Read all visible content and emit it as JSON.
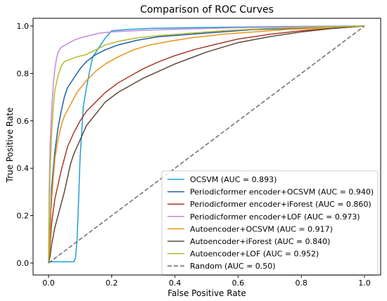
{
  "chart_data": {
    "type": "line",
    "title": "Comparison of ROC Curves",
    "xlabel": "False Positive Rate",
    "ylabel": "True Positive Rate",
    "xlim": [
      0.0,
      1.0
    ],
    "ylim": [
      0.0,
      1.0
    ],
    "xticks": [
      "0.0",
      "0.2",
      "0.4",
      "0.6",
      "0.8",
      "1.0"
    ],
    "yticks": [
      "0.0",
      "0.2",
      "0.4",
      "0.6",
      "0.8",
      "1.0"
    ],
    "grid": false,
    "legend_position": "lower-right",
    "series": [
      {
        "name": "OCSVM (AUC = 0.893)",
        "color": "#1f9fd6",
        "style": "solid",
        "points": [
          [
            0.0,
            0.0
          ],
          [
            0.0,
            0.005
          ],
          [
            0.08,
            0.005
          ],
          [
            0.085,
            0.02
          ],
          [
            0.09,
            0.09
          ],
          [
            0.095,
            0.26
          ],
          [
            0.1,
            0.45
          ],
          [
            0.105,
            0.55
          ],
          [
            0.11,
            0.66
          ],
          [
            0.12,
            0.74
          ],
          [
            0.13,
            0.81
          ],
          [
            0.14,
            0.87
          ],
          [
            0.16,
            0.91
          ],
          [
            0.18,
            0.95
          ],
          [
            0.2,
            0.98
          ],
          [
            0.25,
            0.985
          ],
          [
            0.32,
            0.99
          ],
          [
            0.4,
            0.992
          ],
          [
            0.55,
            0.995
          ],
          [
            0.7,
            0.997
          ],
          [
            0.85,
            0.999
          ],
          [
            1.0,
            1.0
          ]
        ]
      },
      {
        "name": "Periodicformer encoder+OCSVM (AUC = 0.940)",
        "color": "#1f5fa8",
        "style": "solid",
        "points": [
          [
            0.0,
            0.0
          ],
          [
            0.005,
            0.15
          ],
          [
            0.01,
            0.32
          ],
          [
            0.02,
            0.47
          ],
          [
            0.03,
            0.57
          ],
          [
            0.04,
            0.64
          ],
          [
            0.05,
            0.7
          ],
          [
            0.06,
            0.74
          ],
          [
            0.08,
            0.78
          ],
          [
            0.1,
            0.82
          ],
          [
            0.12,
            0.85
          ],
          [
            0.15,
            0.88
          ],
          [
            0.18,
            0.9
          ],
          [
            0.22,
            0.92
          ],
          [
            0.28,
            0.94
          ],
          [
            0.35,
            0.955
          ],
          [
            0.45,
            0.965
          ],
          [
            0.55,
            0.975
          ],
          [
            0.65,
            0.985
          ],
          [
            0.78,
            0.99
          ],
          [
            0.9,
            0.995
          ],
          [
            1.0,
            1.0
          ]
        ]
      },
      {
        "name": "Periodicformer encoder+iForest (AUC = 0.860)",
        "color": "#a83a2b",
        "style": "solid",
        "points": [
          [
            0.0,
            0.0
          ],
          [
            0.005,
            0.08
          ],
          [
            0.01,
            0.17
          ],
          [
            0.02,
            0.27
          ],
          [
            0.03,
            0.33
          ],
          [
            0.04,
            0.39
          ],
          [
            0.05,
            0.44
          ],
          [
            0.06,
            0.49
          ],
          [
            0.08,
            0.55
          ],
          [
            0.1,
            0.6
          ],
          [
            0.12,
            0.64
          ],
          [
            0.15,
            0.68
          ],
          [
            0.18,
            0.72
          ],
          [
            0.22,
            0.76
          ],
          [
            0.26,
            0.79
          ],
          [
            0.3,
            0.82
          ],
          [
            0.35,
            0.85
          ],
          [
            0.4,
            0.875
          ],
          [
            0.46,
            0.9
          ],
          [
            0.52,
            0.92
          ],
          [
            0.6,
            0.945
          ],
          [
            0.7,
            0.965
          ],
          [
            0.8,
            0.98
          ],
          [
            0.9,
            0.99
          ],
          [
            1.0,
            1.0
          ]
        ]
      },
      {
        "name": "Periodicformer encoder+LOF (AUC = 0.973)",
        "color": "#c28cd9",
        "style": "solid",
        "points": [
          [
            0.0,
            0.0
          ],
          [
            0.002,
            0.3
          ],
          [
            0.005,
            0.5
          ],
          [
            0.01,
            0.65
          ],
          [
            0.015,
            0.75
          ],
          [
            0.02,
            0.82
          ],
          [
            0.025,
            0.86
          ],
          [
            0.03,
            0.89
          ],
          [
            0.04,
            0.91
          ],
          [
            0.06,
            0.925
          ],
          [
            0.08,
            0.94
          ],
          [
            0.1,
            0.95
          ],
          [
            0.13,
            0.96
          ],
          [
            0.16,
            0.97
          ],
          [
            0.2,
            0.975
          ],
          [
            0.3,
            0.982
          ],
          [
            0.45,
            0.988
          ],
          [
            0.6,
            0.993
          ],
          [
            0.8,
            0.997
          ],
          [
            1.0,
            1.0
          ]
        ]
      },
      {
        "name": "Autoencoder+OCSVM (AUC = 0.917)",
        "color": "#e8951a",
        "style": "solid",
        "points": [
          [
            0.0,
            0.0
          ],
          [
            0.005,
            0.12
          ],
          [
            0.01,
            0.27
          ],
          [
            0.015,
            0.36
          ],
          [
            0.02,
            0.44
          ],
          [
            0.03,
            0.52
          ],
          [
            0.04,
            0.58
          ],
          [
            0.05,
            0.62
          ],
          [
            0.07,
            0.67
          ],
          [
            0.09,
            0.72
          ],
          [
            0.12,
            0.77
          ],
          [
            0.15,
            0.81
          ],
          [
            0.18,
            0.84
          ],
          [
            0.22,
            0.87
          ],
          [
            0.27,
            0.9
          ],
          [
            0.32,
            0.92
          ],
          [
            0.38,
            0.935
          ],
          [
            0.45,
            0.95
          ],
          [
            0.55,
            0.965
          ],
          [
            0.65,
            0.975
          ],
          [
            0.75,
            0.985
          ],
          [
            0.85,
            0.99
          ],
          [
            1.0,
            1.0
          ]
        ]
      },
      {
        "name": "Autoencoder+iForest (AUC = 0.840)",
        "color": "#5c4a3a",
        "style": "solid",
        "points": [
          [
            0.0,
            0.0
          ],
          [
            0.005,
            0.03
          ],
          [
            0.01,
            0.08
          ],
          [
            0.02,
            0.15
          ],
          [
            0.03,
            0.2
          ],
          [
            0.04,
            0.25
          ],
          [
            0.05,
            0.3
          ],
          [
            0.06,
            0.36
          ],
          [
            0.07,
            0.42
          ],
          [
            0.08,
            0.46
          ],
          [
            0.1,
            0.52
          ],
          [
            0.12,
            0.58
          ],
          [
            0.15,
            0.63
          ],
          [
            0.18,
            0.68
          ],
          [
            0.22,
            0.72
          ],
          [
            0.26,
            0.75
          ],
          [
            0.3,
            0.78
          ],
          [
            0.35,
            0.81
          ],
          [
            0.4,
            0.84
          ],
          [
            0.45,
            0.865
          ],
          [
            0.5,
            0.89
          ],
          [
            0.55,
            0.91
          ],
          [
            0.6,
            0.93
          ],
          [
            0.7,
            0.955
          ],
          [
            0.8,
            0.975
          ],
          [
            0.9,
            0.99
          ],
          [
            1.0,
            1.0
          ]
        ]
      },
      {
        "name": "Autoencoder+LOF (AUC = 0.952)",
        "color": "#b5b92c",
        "style": "solid",
        "points": [
          [
            0.0,
            0.0
          ],
          [
            0.002,
            0.2
          ],
          [
            0.005,
            0.4
          ],
          [
            0.01,
            0.55
          ],
          [
            0.015,
            0.66
          ],
          [
            0.02,
            0.73
          ],
          [
            0.03,
            0.79
          ],
          [
            0.04,
            0.83
          ],
          [
            0.05,
            0.85
          ],
          [
            0.07,
            0.86
          ],
          [
            0.09,
            0.87
          ],
          [
            0.12,
            0.88
          ],
          [
            0.15,
            0.9
          ],
          [
            0.18,
            0.92
          ],
          [
            0.22,
            0.935
          ],
          [
            0.28,
            0.95
          ],
          [
            0.35,
            0.96
          ],
          [
            0.45,
            0.97
          ],
          [
            0.55,
            0.98
          ],
          [
            0.7,
            0.99
          ],
          [
            0.85,
            0.995
          ],
          [
            1.0,
            1.0
          ]
        ]
      },
      {
        "name": "Random (AUC = 0.50)",
        "color": "#6e6e6e",
        "style": "dashed",
        "points": [
          [
            0.0,
            0.0
          ],
          [
            1.0,
            1.0
          ]
        ]
      }
    ]
  }
}
